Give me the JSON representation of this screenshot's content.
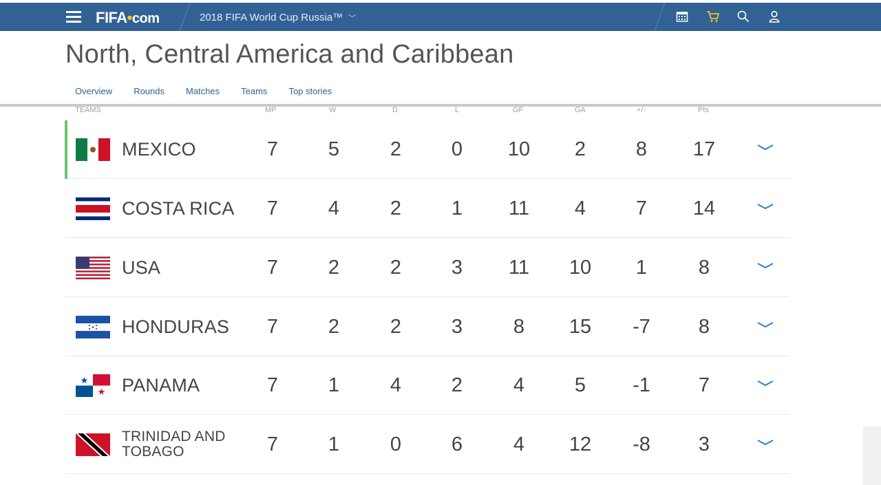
{
  "header": {
    "logo_main": "FIFA",
    "logo_dot": "•",
    "logo_com": "com",
    "competition": "2018 FIFA World Cup Russia™",
    "icons": [
      "menu-icon",
      "calendar-icon",
      "cart-icon",
      "search-icon",
      "user-icon"
    ],
    "accent": "#326295",
    "highlight": "#f5c324"
  },
  "page": {
    "title": "North, Central America and Caribbean"
  },
  "tabs": [
    {
      "label": "Overview",
      "active": false
    },
    {
      "label": "Rounds",
      "active": true
    },
    {
      "label": "Matches",
      "active": false
    },
    {
      "label": "Teams",
      "active": false
    },
    {
      "label": "Top stories",
      "active": false
    }
  ],
  "table": {
    "columns": [
      "TEAMS",
      "MP",
      "W",
      "D",
      "L",
      "GF",
      "GA",
      "+/-",
      "Pts"
    ],
    "rows": [
      {
        "team": "MEXICO",
        "flag": "mexico",
        "mp": "7",
        "w": "5",
        "d": "2",
        "l": "0",
        "gf": "10",
        "ga": "2",
        "diff": "8",
        "pts": "17"
      },
      {
        "team": "COSTA RICA",
        "flag": "costa-rica",
        "mp": "7",
        "w": "4",
        "d": "2",
        "l": "1",
        "gf": "11",
        "ga": "4",
        "diff": "7",
        "pts": "14"
      },
      {
        "team": "USA",
        "flag": "usa",
        "mp": "7",
        "w": "2",
        "d": "2",
        "l": "3",
        "gf": "11",
        "ga": "10",
        "diff": "1",
        "pts": "8"
      },
      {
        "team": "HONDURAS",
        "flag": "honduras",
        "mp": "7",
        "w": "2",
        "d": "2",
        "l": "3",
        "gf": "8",
        "ga": "15",
        "diff": "-7",
        "pts": "8"
      },
      {
        "team": "PANAMA",
        "flag": "panama",
        "mp": "7",
        "w": "1",
        "d": "4",
        "l": "2",
        "gf": "4",
        "ga": "5",
        "diff": "-1",
        "pts": "7"
      },
      {
        "team": "TRINIDAD AND TOBAGO",
        "team_line1": "TRINIDAD AND",
        "team_line2": "TOBAGO",
        "flag": "trinidad-and-tobago",
        "mp": "7",
        "w": "1",
        "d": "0",
        "l": "6",
        "gf": "4",
        "ga": "12",
        "diff": "-8",
        "pts": "3"
      }
    ],
    "leader_color": "#6cc46c"
  }
}
